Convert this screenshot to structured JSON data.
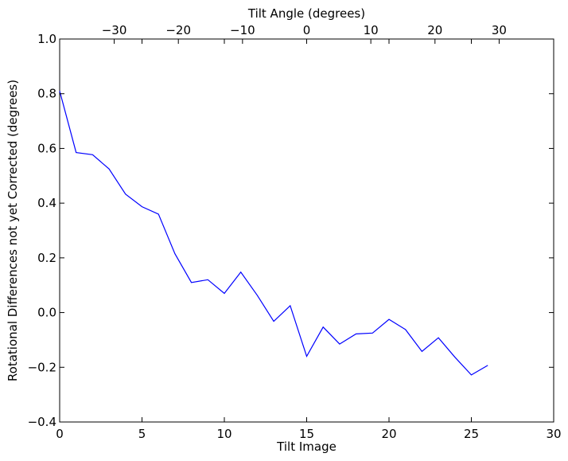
{
  "chart_data": {
    "type": "line",
    "xlabel": "Tilt Image",
    "ylabel": "Rotational Differences not yet Corrected (degrees)",
    "top_xlabel": "Tilt Angle (degrees)",
    "xlim": [
      0,
      30
    ],
    "ylim": [
      -0.4,
      1.0
    ],
    "top_xlim": [
      -38.5,
      38.5
    ],
    "x_ticks": [
      0,
      5,
      10,
      15,
      20,
      25,
      30
    ],
    "x_tick_labels": [
      "0",
      "5",
      "10",
      "15",
      "20",
      "25",
      "30"
    ],
    "y_ticks": [
      -0.4,
      -0.2,
      0.0,
      0.2,
      0.4,
      0.6,
      0.8,
      1.0
    ],
    "y_tick_labels": [
      "−0.4",
      "−0.2",
      "0.0",
      "0.2",
      "0.4",
      "0.6",
      "0.8",
      "1.0"
    ],
    "top_x_ticks": [
      -30,
      -20,
      -10,
      0,
      10,
      20,
      30
    ],
    "top_x_tick_labels": [
      "−30",
      "−20",
      "−10",
      "0",
      "10",
      "20",
      "30"
    ],
    "grid": false,
    "series": [
      {
        "color": "#0000ff",
        "x": [
          0,
          1,
          2,
          3,
          4,
          5,
          6,
          7,
          8,
          9,
          10,
          11,
          12,
          13,
          14,
          15,
          16,
          17,
          18,
          19,
          20,
          21,
          22,
          23,
          24,
          25,
          26
        ],
        "y": [
          0.81,
          0.585,
          0.577,
          0.525,
          0.433,
          0.387,
          0.36,
          0.215,
          0.11,
          0.12,
          0.07,
          0.148,
          0.063,
          -0.032,
          0.025,
          -0.16,
          -0.053,
          -0.115,
          -0.078,
          -0.075,
          -0.025,
          -0.062,
          -0.142,
          -0.092,
          -0.163,
          -0.228,
          -0.193
        ]
      }
    ]
  }
}
